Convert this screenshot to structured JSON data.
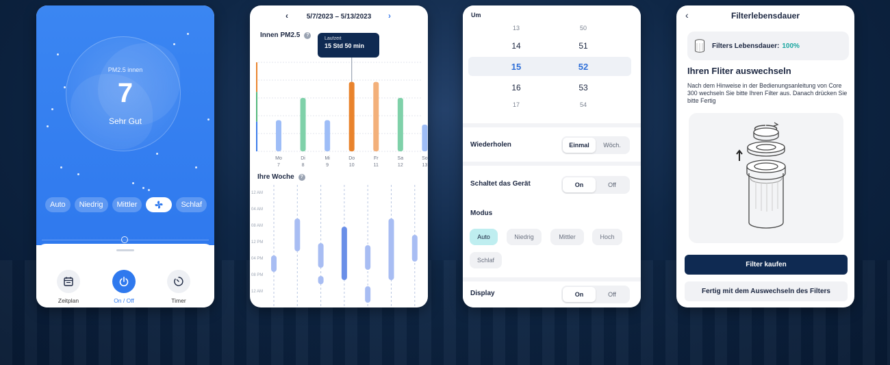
{
  "screen1": {
    "pm_label": "PM2.5 innen",
    "pm_value": "7",
    "status": "Sehr Gut",
    "modes": [
      "Auto",
      "Niedrig",
      "Mittler",
      "Schlaf"
    ],
    "controls": [
      {
        "label": "Zeitplan",
        "icon": "calendar-icon"
      },
      {
        "label": "On / Off",
        "icon": "power-icon"
      },
      {
        "label": "Timer",
        "icon": "timer-icon"
      }
    ],
    "colors": {
      "primary": "#2f79ee"
    }
  },
  "screen2": {
    "date_range": "5/7/2023 – 5/13/2023",
    "section1_title": "Innen PM2.5",
    "tooltip_title": "Laufzeit",
    "tooltip_value": "15 Std 50 min",
    "section2_title": "Ihre Woche",
    "chart_data": [
      {
        "type": "bar",
        "title": "Innen PM2.5",
        "categories": [
          "Mo 7",
          "Di 8",
          "Mi 9",
          "Do 10",
          "Fr 11",
          "Sa 12",
          "So 13"
        ],
        "day_labels": [
          "Mo",
          "Di",
          "Mi",
          "Do",
          "Fr",
          "Sa",
          "So"
        ],
        "date_labels": [
          "7",
          "8",
          "9",
          "10",
          "11",
          "12",
          "13"
        ],
        "values": [
          0.35,
          0.6,
          0.35,
          0.78,
          0.78,
          0.6,
          0.3
        ],
        "colors": [
          "#9ebdf7",
          "#7fd1a9",
          "#9ebdf7",
          "#e9832c",
          "#f3b07a",
          "#7fd1a9",
          "#9ebdf7"
        ],
        "selected_index": 3,
        "scale_colors": [
          "#e9832c",
          "#52b67a",
          "#3b7bea"
        ]
      },
      {
        "type": "gantt",
        "title": "Ihre Woche",
        "y_ticks": [
          "12 AM",
          "04 AM",
          "08 AM",
          "12 PM",
          "04 PM",
          "08 PM",
          "12 AM"
        ],
        "days": 7,
        "segments": [
          {
            "day": 0,
            "start": 15.5,
            "end": 19.5
          },
          {
            "day": 1,
            "start": 6.5,
            "end": 14.5
          },
          {
            "day": 2,
            "start": 12.5,
            "end": 18.5
          },
          {
            "day": 2,
            "start": 20.5,
            "end": 22.5
          },
          {
            "day": 3,
            "start": 8.5,
            "end": 21.5,
            "dark": true
          },
          {
            "day": 4,
            "start": 13,
            "end": 19
          },
          {
            "day": 4,
            "start": 23,
            "end": 27
          },
          {
            "day": 5,
            "start": 6.5,
            "end": 21.5
          },
          {
            "day": 6,
            "start": 10.5,
            "end": 17
          }
        ]
      }
    ]
  },
  "screen3": {
    "um_label": "Um",
    "hours": [
      "13",
      "14",
      "15",
      "16",
      "17"
    ],
    "minutes": [
      "50",
      "51",
      "52",
      "53",
      "54"
    ],
    "repeat_label": "Wiederholen",
    "repeat_options": [
      "Einmal",
      "Wöch."
    ],
    "device_label": "Schaltet das Gerät",
    "device_options": [
      "On",
      "Off"
    ],
    "mode_label": "Modus",
    "mode_options": [
      "Auto",
      "Niedrig",
      "Mittler",
      "Hoch",
      "Schlaf"
    ],
    "display_label": "Display",
    "display_options": [
      "On",
      "Off"
    ],
    "accent": "#bfeef0"
  },
  "screen4": {
    "title": "Filterlebensdauer",
    "life_label": "Filters Lebensdauer:",
    "life_value": "100%",
    "heading": "Ihren Fliter auswechseln",
    "description": "Nach dem Hinweise in der Bedienungsanleitung von Core 300 wechseln Sie bitte Ihren Filter aus. Danach drücken Sie bitte Fertig",
    "buy_button": "Filter kaufen",
    "done_button": "Fertig mit dem Auswechseln des Filters",
    "accent": "#1aa6a0",
    "primary": "#0f2a52"
  }
}
